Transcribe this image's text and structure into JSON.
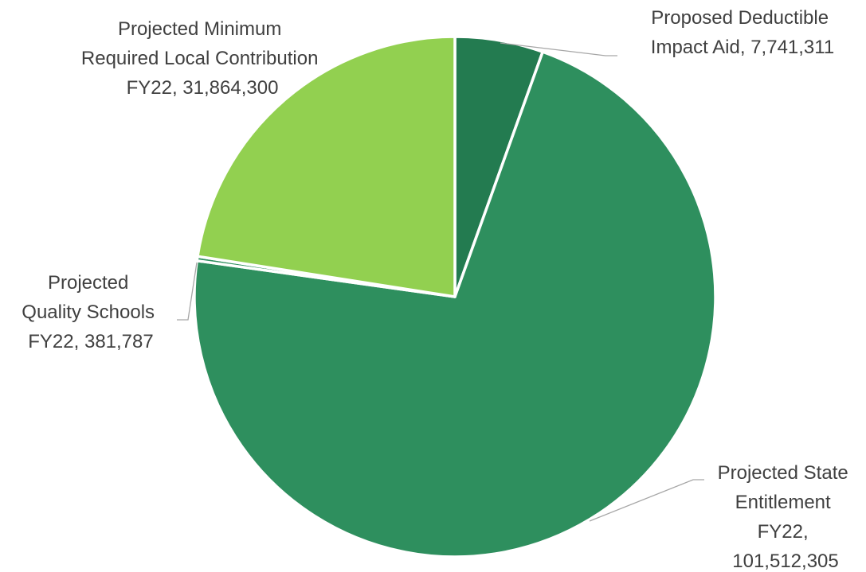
{
  "chart_data": {
    "type": "pie",
    "title": "",
    "series": [
      {
        "name": "",
        "slices": [
          {
            "category_lines": [
              "Proposed Deductible",
              "Impact Aid"
            ],
            "value": 7741311,
            "value_label": "7,741,311",
            "color": "#237B50"
          },
          {
            "category_lines": [
              "Projected State",
              "Entitlement",
              "FY22,"
            ],
            "value": 101512305,
            "value_label": "101,512,305",
            "color": "#2E8F5E"
          },
          {
            "category_lines": [
              "Projected",
              "Quality Schools",
              "FY22"
            ],
            "value": 381787,
            "value_label": "381,787",
            "color": "#2E8F5E"
          },
          {
            "category_lines": [
              "Projected Minimum",
              "Required Local Contribution",
              "FY22"
            ],
            "value": 31864300,
            "value_label": "31,864,300",
            "color": "#92D050"
          }
        ]
      }
    ],
    "start_angle": "12 o'clock",
    "direction": "clockwise",
    "legend": "none",
    "data_labels": "outside with leader lines"
  }
}
